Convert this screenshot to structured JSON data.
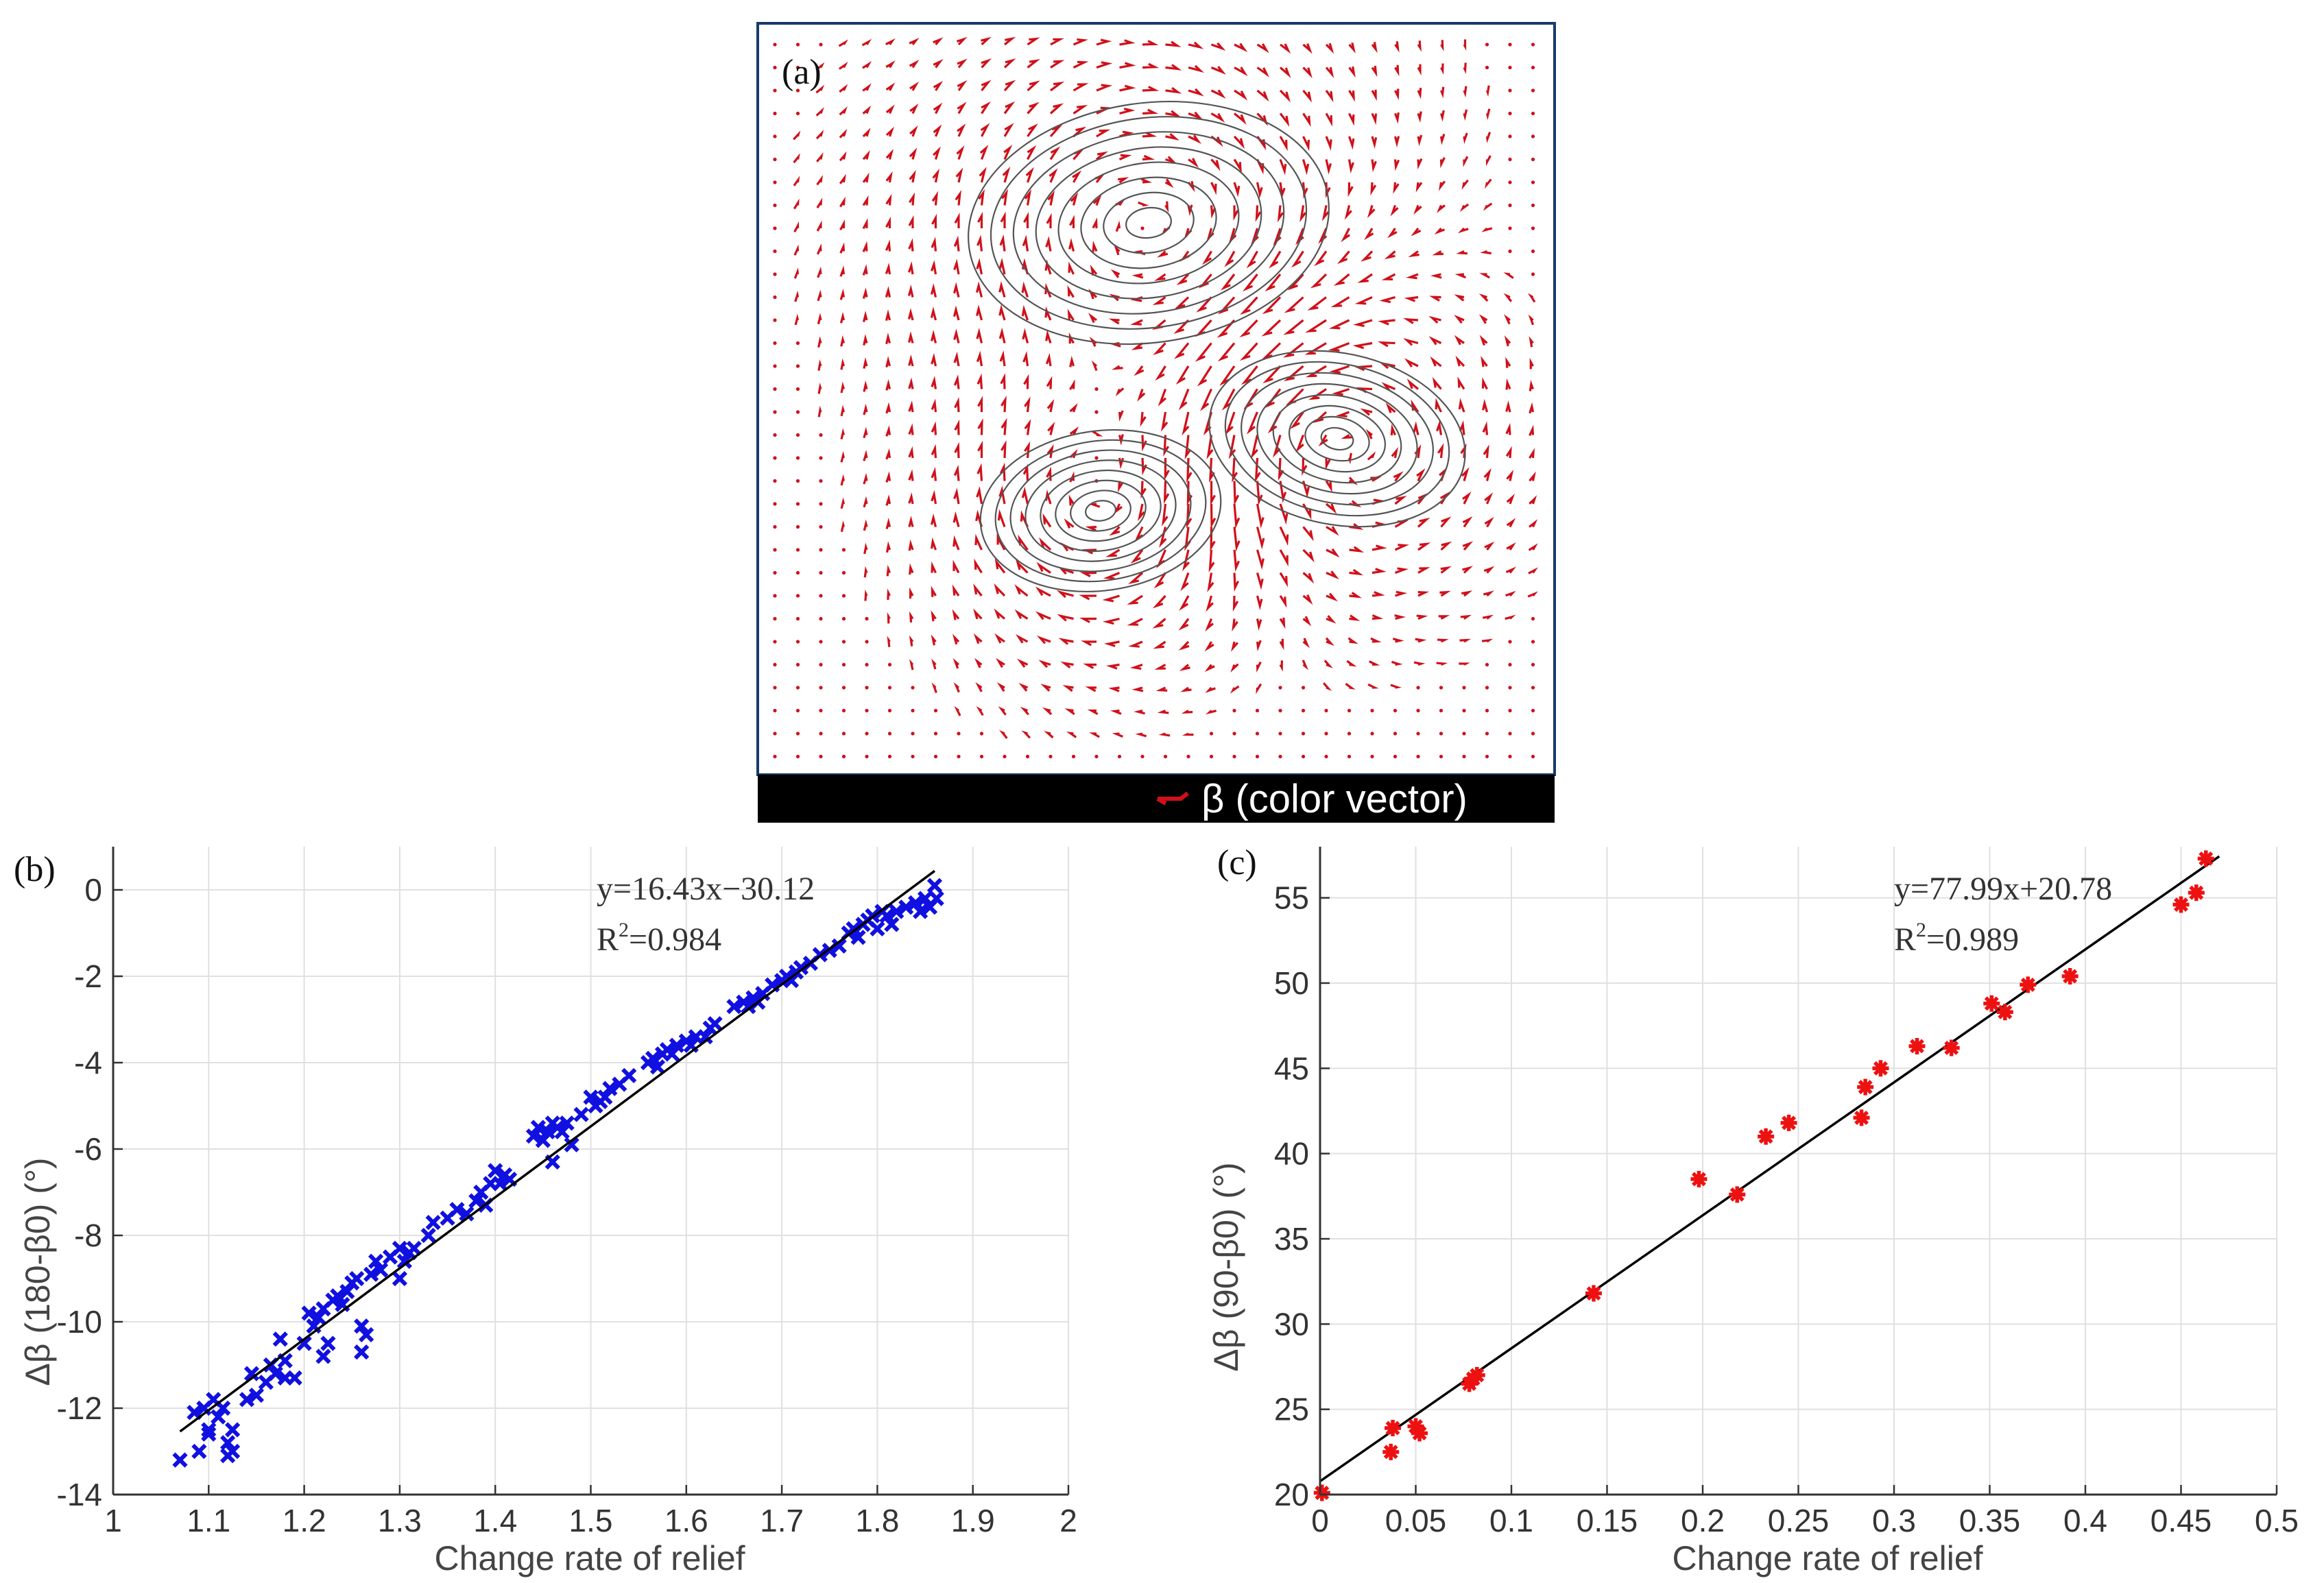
{
  "chart_data": [
    {
      "panel": "(a)",
      "type": "vector-field",
      "legend": "β (color vector)",
      "colors": {
        "vector": "#d0101a",
        "contour": "#555555",
        "legend_bg": "#000000"
      }
    },
    {
      "panel": "(b)",
      "type": "scatter",
      "xlabel": "Change rate of relief",
      "ylabel": "Δβ (180-β0) (°)",
      "xlim": [
        1,
        2
      ],
      "ylim": [
        -14,
        1
      ],
      "xticks": [
        1,
        1.1,
        1.2,
        1.3,
        1.4,
        1.5,
        1.6,
        1.7,
        1.8,
        1.9,
        2
      ],
      "yticks": [
        -14,
        -12,
        -10,
        -8,
        -6,
        -4,
        -2,
        0
      ],
      "grid": true,
      "marker": "x",
      "color": "#1010e0",
      "equation": "y=16.43x−30.12",
      "r2_prefix": "R",
      "r2_sup": "2",
      "r2_value": "=0.984",
      "fit": {
        "slope": 16.43,
        "intercept": -30.12,
        "x_range": [
          1.07,
          1.86
        ]
      },
      "points": [
        [
          1.07,
          -13.2
        ],
        [
          1.085,
          -12.1
        ],
        [
          1.09,
          -13.0
        ],
        [
          1.095,
          -12.0
        ],
        [
          1.1,
          -12.5
        ],
        [
          1.1,
          -12.6
        ],
        [
          1.105,
          -11.8
        ],
        [
          1.11,
          -12.2
        ],
        [
          1.115,
          -12.0
        ],
        [
          1.12,
          -13.1
        ],
        [
          1.12,
          -12.8
        ],
        [
          1.125,
          -12.5
        ],
        [
          1.125,
          -13.0
        ],
        [
          1.14,
          -11.8
        ],
        [
          1.145,
          -11.2
        ],
        [
          1.15,
          -11.7
        ],
        [
          1.16,
          -11.4
        ],
        [
          1.165,
          -11.0
        ],
        [
          1.17,
          -11.2
        ],
        [
          1.175,
          -10.4
        ],
        [
          1.18,
          -11.3
        ],
        [
          1.18,
          -10.9
        ],
        [
          1.19,
          -11.3
        ],
        [
          1.2,
          -10.5
        ],
        [
          1.205,
          -9.8
        ],
        [
          1.21,
          -10.1
        ],
        [
          1.215,
          -9.9
        ],
        [
          1.22,
          -10.8
        ],
        [
          1.22,
          -9.7
        ],
        [
          1.225,
          -10.5
        ],
        [
          1.23,
          -9.5
        ],
        [
          1.235,
          -9.4
        ],
        [
          1.24,
          -9.6
        ],
        [
          1.245,
          -9.3
        ],
        [
          1.25,
          -9.1
        ],
        [
          1.255,
          -9.0
        ],
        [
          1.26,
          -10.1
        ],
        [
          1.26,
          -10.7
        ],
        [
          1.265,
          -10.3
        ],
        [
          1.27,
          -8.9
        ],
        [
          1.275,
          -8.6
        ],
        [
          1.28,
          -8.8
        ],
        [
          1.29,
          -8.5
        ],
        [
          1.3,
          -8.3
        ],
        [
          1.3,
          -9.0
        ],
        [
          1.305,
          -8.6
        ],
        [
          1.31,
          -8.4
        ],
        [
          1.315,
          -8.3
        ],
        [
          1.33,
          -8.0
        ],
        [
          1.335,
          -7.7
        ],
        [
          1.35,
          -7.6
        ],
        [
          1.36,
          -7.4
        ],
        [
          1.37,
          -7.5
        ],
        [
          1.38,
          -7.2
        ],
        [
          1.385,
          -7.0
        ],
        [
          1.39,
          -7.3
        ],
        [
          1.395,
          -6.8
        ],
        [
          1.4,
          -6.5
        ],
        [
          1.405,
          -6.8
        ],
        [
          1.41,
          -6.6
        ],
        [
          1.415,
          -6.7
        ],
        [
          1.44,
          -5.7
        ],
        [
          1.445,
          -5.5
        ],
        [
          1.45,
          -5.8
        ],
        [
          1.455,
          -5.6
        ],
        [
          1.46,
          -5.4
        ],
        [
          1.46,
          -6.3
        ],
        [
          1.465,
          -5.5
        ],
        [
          1.47,
          -5.6
        ],
        [
          1.475,
          -5.4
        ],
        [
          1.48,
          -5.9
        ],
        [
          1.49,
          -5.2
        ],
        [
          1.5,
          -4.8
        ],
        [
          1.505,
          -5.0
        ],
        [
          1.51,
          -4.9
        ],
        [
          1.515,
          -4.8
        ],
        [
          1.52,
          -4.6
        ],
        [
          1.53,
          -4.5
        ],
        [
          1.54,
          -4.3
        ],
        [
          1.56,
          -4.0
        ],
        [
          1.565,
          -3.9
        ],
        [
          1.57,
          -4.1
        ],
        [
          1.575,
          -3.8
        ],
        [
          1.58,
          -3.7
        ],
        [
          1.585,
          -3.8
        ],
        [
          1.59,
          -3.6
        ],
        [
          1.6,
          -3.5
        ],
        [
          1.605,
          -3.6
        ],
        [
          1.61,
          -3.4
        ],
        [
          1.62,
          -3.4
        ],
        [
          1.625,
          -3.2
        ],
        [
          1.63,
          -3.1
        ],
        [
          1.65,
          -2.7
        ],
        [
          1.66,
          -2.6
        ],
        [
          1.665,
          -2.7
        ],
        [
          1.67,
          -2.5
        ],
        [
          1.675,
          -2.6
        ],
        [
          1.68,
          -2.4
        ],
        [
          1.69,
          -2.2
        ],
        [
          1.7,
          -2.1
        ],
        [
          1.705,
          -2.0
        ],
        [
          1.71,
          -2.1
        ],
        [
          1.715,
          -1.9
        ],
        [
          1.72,
          -1.8
        ],
        [
          1.73,
          -1.7
        ],
        [
          1.74,
          -1.5
        ],
        [
          1.75,
          -1.4
        ],
        [
          1.76,
          -1.3
        ],
        [
          1.77,
          -1.0
        ],
        [
          1.775,
          -0.9
        ],
        [
          1.78,
          -1.1
        ],
        [
          1.785,
          -0.8
        ],
        [
          1.79,
          -0.7
        ],
        [
          1.795,
          -0.6
        ],
        [
          1.8,
          -0.9
        ],
        [
          1.805,
          -0.5
        ],
        [
          1.81,
          -0.6
        ],
        [
          1.815,
          -0.8
        ],
        [
          1.82,
          -0.5
        ],
        [
          1.83,
          -0.4
        ],
        [
          1.84,
          -0.3
        ],
        [
          1.845,
          -0.5
        ],
        [
          1.85,
          -0.2
        ],
        [
          1.855,
          -0.4
        ],
        [
          1.86,
          0.1
        ],
        [
          1.862,
          -0.2
        ]
      ]
    },
    {
      "panel": "(c)",
      "type": "scatter",
      "xlabel": "Change rate of relief",
      "ylabel": "Δβ (90-β0) (°)",
      "xlim": [
        0,
        0.5
      ],
      "ylim": [
        20,
        58
      ],
      "xticks": [
        0,
        0.05,
        0.1,
        0.15,
        0.2,
        0.25,
        0.3,
        0.35,
        0.4,
        0.45,
        0.5
      ],
      "yticks": [
        20,
        25,
        30,
        35,
        40,
        45,
        50,
        55
      ],
      "grid": true,
      "marker": "asterisk",
      "color": "#ee1111",
      "equation": "y=77.99x+20.78",
      "r2_prefix": "R",
      "r2_sup": "2",
      "r2_value": "=0.989",
      "fit": {
        "slope": 77.99,
        "intercept": 20.78,
        "x_range": [
          0,
          0.47
        ]
      },
      "points": [
        [
          0.001,
          20.1
        ],
        [
          0.037,
          22.5
        ],
        [
          0.038,
          23.9
        ],
        [
          0.05,
          24.0
        ],
        [
          0.052,
          23.6
        ],
        [
          0.078,
          26.5
        ],
        [
          0.08,
          26.8
        ],
        [
          0.082,
          27.0
        ],
        [
          0.143,
          31.8
        ],
        [
          0.198,
          38.5
        ],
        [
          0.218,
          37.6
        ],
        [
          0.233,
          41.0
        ],
        [
          0.245,
          41.8
        ],
        [
          0.283,
          42.1
        ],
        [
          0.285,
          43.9
        ],
        [
          0.293,
          45.0
        ],
        [
          0.312,
          46.3
        ],
        [
          0.33,
          46.2
        ],
        [
          0.351,
          48.8
        ],
        [
          0.358,
          48.3
        ],
        [
          0.37,
          49.9
        ],
        [
          0.392,
          50.4
        ],
        [
          0.45,
          54.6
        ],
        [
          0.458,
          55.3
        ],
        [
          0.463,
          57.3
        ]
      ]
    }
  ]
}
